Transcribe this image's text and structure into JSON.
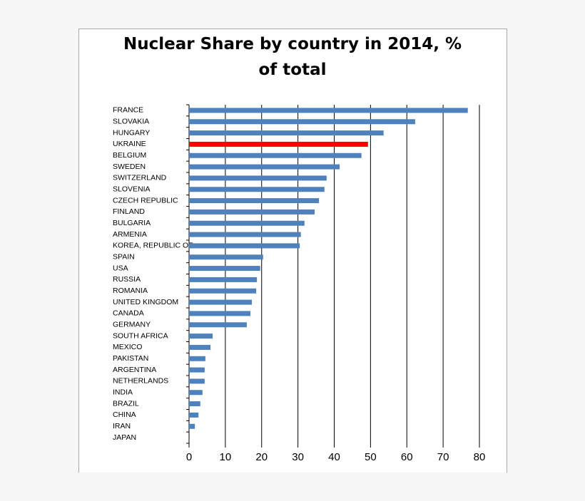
{
  "chart_data": {
    "type": "bar",
    "orientation": "horizontal",
    "title": "Nuclear Share by country in 2014,  % of total",
    "categories": [
      "FRANCE",
      "SLOVAKIA",
      "HUNGARY",
      "UKRAINE",
      "BELGIUM",
      "SWEDEN",
      "SWITZERLAND",
      "SLOVENIA",
      "CZECH REPUBLIC",
      "FINLAND",
      "BULGARIA",
      "ARMENIA",
      "KOREA, REPUBLIC OF",
      "SPAIN",
      "USA",
      "RUSSIA",
      "ROMANIA",
      "UNITED KINGDOM",
      "CANADA",
      "GERMANY",
      "SOUTH AFRICA",
      "MEXICO",
      "PAKISTAN",
      "ARGENTINA",
      "NETHERLANDS",
      "INDIA",
      "BRAZIL",
      "CHINA",
      "IRAN",
      "JAPAN"
    ],
    "values": [
      76.8,
      62.3,
      53.6,
      49.3,
      47.5,
      41.5,
      37.9,
      37.3,
      35.8,
      34.6,
      31.8,
      30.8,
      30.5,
      20.4,
      19.6,
      18.7,
      18.5,
      17.3,
      16.9,
      15.9,
      6.5,
      5.9,
      4.5,
      4.3,
      4.3,
      3.7,
      3.1,
      2.6,
      1.6,
      0
    ],
    "colors": [
      "#4f81bd",
      "#4f81bd",
      "#4f81bd",
      "#ff0000",
      "#4f81bd",
      "#4f81bd",
      "#4f81bd",
      "#4f81bd",
      "#4f81bd",
      "#4f81bd",
      "#4f81bd",
      "#4f81bd",
      "#4f81bd",
      "#4f81bd",
      "#4f81bd",
      "#4f81bd",
      "#4f81bd",
      "#4f81bd",
      "#4f81bd",
      "#4f81bd",
      "#4f81bd",
      "#4f81bd",
      "#4f81bd",
      "#4f81bd",
      "#4f81bd",
      "#4f81bd",
      "#4f81bd",
      "#4f81bd",
      "#4f81bd",
      "#4f81bd"
    ],
    "xlim": [
      0,
      80
    ],
    "xticks": [
      0,
      10,
      20,
      30,
      40,
      50,
      60,
      70,
      80
    ],
    "grid": true
  }
}
